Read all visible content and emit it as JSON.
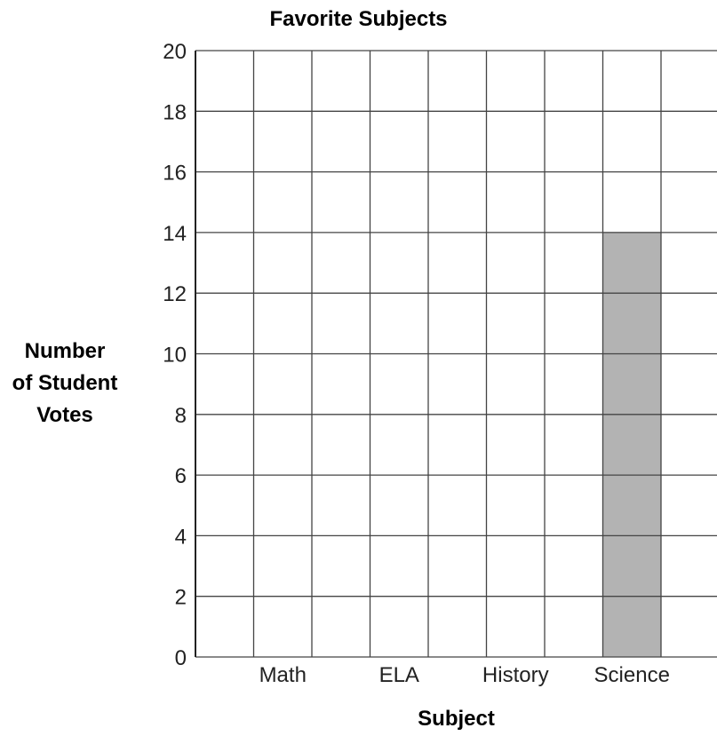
{
  "chart_data": {
    "type": "bar",
    "title": "Favorite Subjects",
    "xlabel": "Subject",
    "ylabel_lines": [
      "Number",
      "of Student",
      "Votes"
    ],
    "categories": [
      "Math",
      "ELA",
      "History",
      "Science"
    ],
    "values": [
      0,
      0,
      0,
      14
    ],
    "ylim": [
      0,
      20
    ],
    "y_ticks": [
      0,
      2,
      4,
      6,
      8,
      10,
      12,
      14,
      16,
      18,
      20
    ],
    "grid": true,
    "bar_color": "#b3b3b3"
  }
}
